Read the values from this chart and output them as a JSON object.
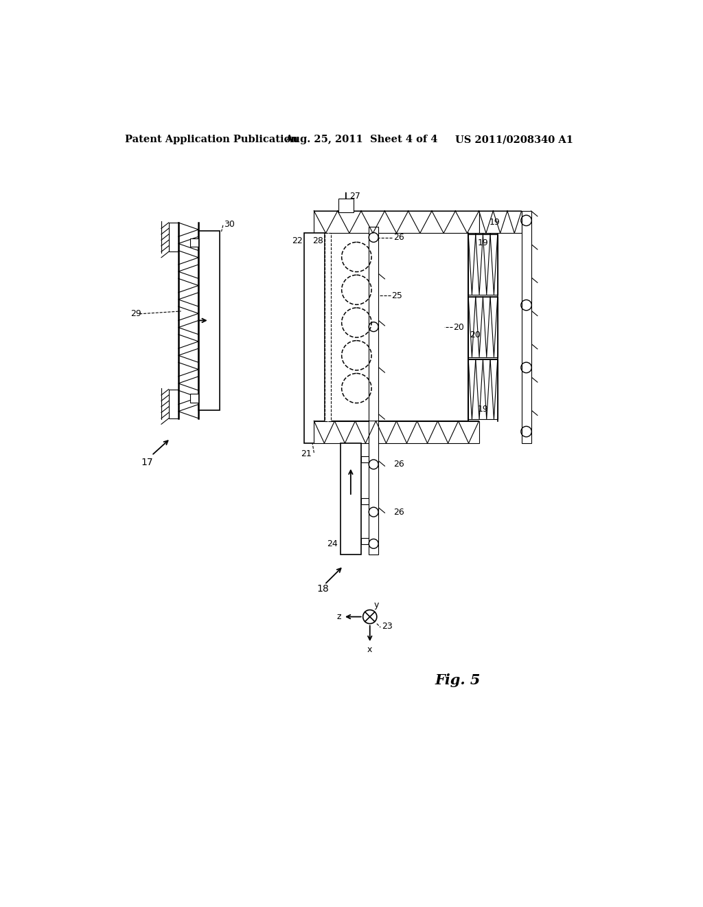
{
  "bg_color": "#ffffff",
  "header_left": "Patent Application Publication",
  "header_center": "Aug. 25, 2011  Sheet 4 of 4",
  "header_right": "US 2011/0208340 A1",
  "fig_label": "Fig. 5"
}
